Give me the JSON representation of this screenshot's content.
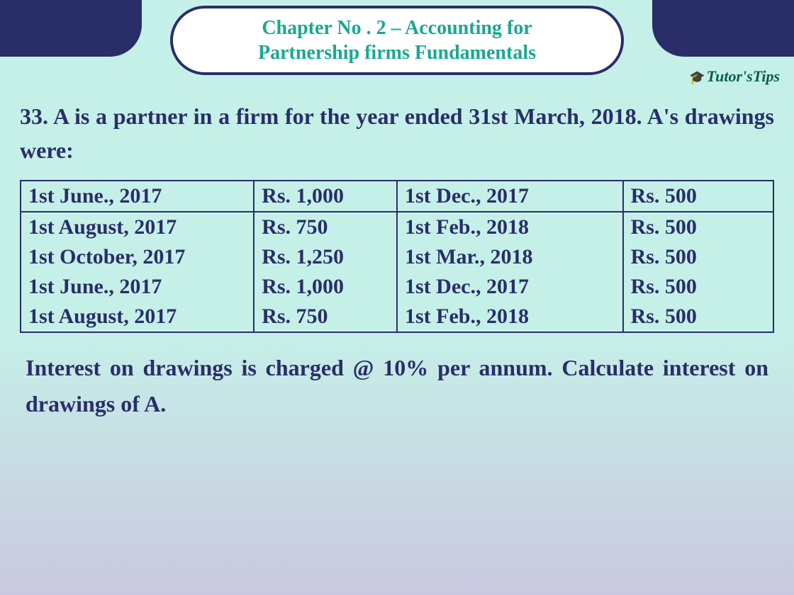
{
  "chapter_title_line1": "Chapter No . 2 –  Accounting for",
  "chapter_title_line2": "Partnership firms Fundamentals",
  "logo": {
    "cap": "🎓",
    "tutors": "Tutor's",
    "tips": "Tips"
  },
  "question": "33. A is a partner in a firm for the year ended 31st March, 2018. A's drawings were:",
  "table": {
    "rows": [
      {
        "sep": false,
        "dl": "1st June., 2017",
        "al": "Rs. 1,000",
        "dr": "1st Dec., 2017",
        "ar": "Rs. 500"
      },
      {
        "sep": true,
        "dl": "1st August, 2017",
        "al": "Rs. 750",
        "dr": "1st Feb., 2018",
        "ar": "Rs. 500"
      },
      {
        "sep": false,
        "dl": "1st October, 2017",
        "al": "Rs. 1,250",
        "dr": "1st Mar., 2018",
        "ar": "Rs. 500"
      },
      {
        "sep": false,
        "dl": "1st June., 2017",
        "al": "Rs. 1,000",
        "dr": "1st Dec., 2017",
        "ar": "Rs. 500"
      },
      {
        "sep": false,
        "dl": "1st August, 2017",
        "al": "Rs. 750",
        "dr": "1st Feb., 2018",
        "ar": "Rs. 500"
      }
    ]
  },
  "footer": "Interest on drawings is charged @ 10% per annum. Calculate interest on drawings of A.",
  "colors": {
    "accent_navy": "#2a2e68",
    "accent_teal": "#1aa890",
    "bg_top": "#c5f0e8",
    "bg_bottom": "#cac8df"
  }
}
